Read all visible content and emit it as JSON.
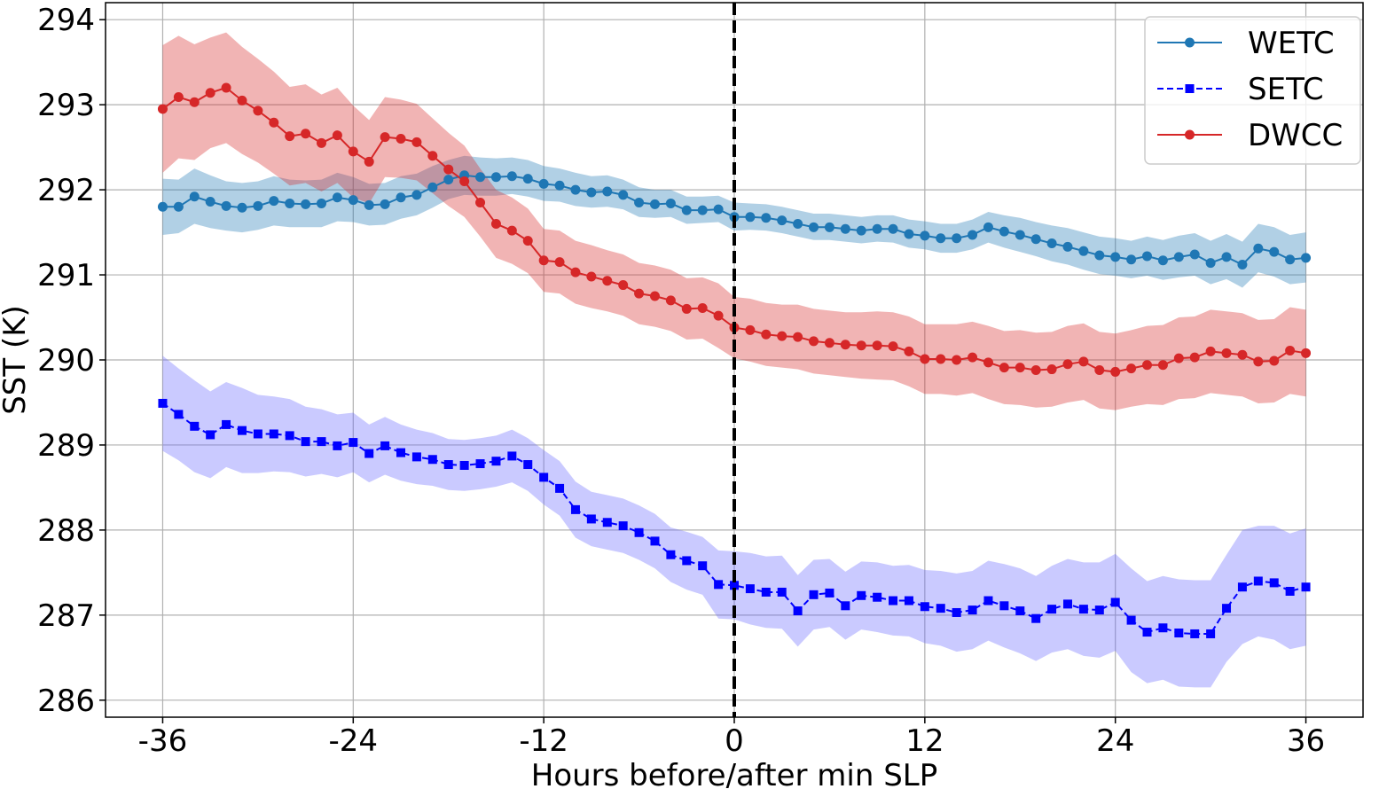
{
  "chart_data": {
    "type": "line",
    "xlabel": "Hours before/after min SLP",
    "ylabel": "SST (K)",
    "xlim": [
      -39.6,
      39.6
    ],
    "ylim": [
      285.8,
      294.2
    ],
    "xticks": [
      -36,
      -24,
      -12,
      0,
      12,
      24,
      36
    ],
    "yticks": [
      286,
      287,
      288,
      289,
      290,
      291,
      292,
      293,
      294
    ],
    "grid": true,
    "legend_position": "top-right",
    "vline_x": 0,
    "vline_style": "black dashed",
    "x": [
      -36,
      -35,
      -34,
      -33,
      -32,
      -31,
      -30,
      -29,
      -28,
      -27,
      -26,
      -25,
      -24,
      -23,
      -22,
      -21,
      -20,
      -19,
      -18,
      -17,
      -16,
      -15,
      -14,
      -13,
      -12,
      -11,
      -10,
      -9,
      -8,
      -7,
      -6,
      -5,
      -4,
      -3,
      -2,
      -1,
      0,
      1,
      2,
      3,
      4,
      5,
      6,
      7,
      8,
      9,
      10,
      11,
      12,
      13,
      14,
      15,
      16,
      17,
      18,
      19,
      20,
      21,
      22,
      23,
      24,
      25,
      26,
      27,
      28,
      29,
      30,
      31,
      32,
      33,
      34,
      35,
      36
    ],
    "series": [
      {
        "name": "WETC",
        "color": "#1f77b4",
        "band_color": "#1f77b4",
        "marker": "circle",
        "linestyle": "solid",
        "values": [
          291.8,
          291.8,
          291.92,
          291.86,
          291.81,
          291.79,
          291.81,
          291.87,
          291.84,
          291.83,
          291.84,
          291.91,
          291.88,
          291.82,
          291.83,
          291.91,
          291.94,
          292.03,
          292.12,
          292.17,
          292.15,
          292.15,
          292.16,
          292.13,
          292.07,
          292.05,
          292.0,
          291.97,
          291.98,
          291.94,
          291.85,
          291.83,
          291.84,
          291.76,
          291.76,
          291.77,
          291.68,
          291.68,
          291.67,
          291.64,
          291.6,
          291.56,
          291.56,
          291.54,
          291.52,
          291.54,
          291.54,
          291.48,
          291.46,
          291.43,
          291.43,
          291.47,
          291.56,
          291.51,
          291.47,
          291.42,
          291.37,
          291.33,
          291.28,
          291.23,
          291.21,
          291.18,
          291.22,
          291.17,
          291.21,
          291.24,
          291.14,
          291.21,
          291.12,
          291.31,
          291.27,
          291.18,
          291.2
        ],
        "lower": [
          291.47,
          291.49,
          291.6,
          291.55,
          291.52,
          291.5,
          291.53,
          291.58,
          291.56,
          291.56,
          291.56,
          291.63,
          291.62,
          291.58,
          291.59,
          291.66,
          291.7,
          291.79,
          291.89,
          291.94,
          291.93,
          291.93,
          291.95,
          291.92,
          291.87,
          291.86,
          291.81,
          291.79,
          291.8,
          291.77,
          291.68,
          291.67,
          291.68,
          291.6,
          291.61,
          291.62,
          291.52,
          291.53,
          291.52,
          291.49,
          291.45,
          291.41,
          291.41,
          291.39,
          291.37,
          291.39,
          291.38,
          291.32,
          291.3,
          291.26,
          291.26,
          291.3,
          291.38,
          291.32,
          291.27,
          291.22,
          291.16,
          291.12,
          291.06,
          291.01,
          290.99,
          290.96,
          290.99,
          290.94,
          290.97,
          290.99,
          290.89,
          290.95,
          290.85,
          291.03,
          290.98,
          290.89,
          290.91
        ],
        "upper": [
          292.13,
          292.12,
          292.25,
          292.17,
          292.1,
          292.08,
          292.1,
          292.16,
          292.12,
          292.11,
          292.12,
          292.2,
          292.15,
          292.07,
          292.08,
          292.16,
          292.19,
          292.28,
          292.35,
          292.4,
          292.38,
          292.37,
          292.38,
          292.35,
          292.28,
          292.25,
          292.2,
          292.16,
          292.17,
          292.12,
          292.03,
          292.0,
          292.0,
          291.92,
          291.92,
          291.93,
          291.85,
          291.84,
          291.83,
          291.8,
          291.76,
          291.72,
          291.72,
          291.7,
          291.68,
          291.7,
          291.7,
          291.65,
          291.63,
          291.6,
          291.6,
          291.65,
          291.74,
          291.7,
          291.67,
          291.62,
          291.58,
          291.55,
          291.5,
          291.45,
          291.43,
          291.4,
          291.45,
          291.41,
          291.46,
          291.49,
          291.4,
          291.48,
          291.39,
          291.6,
          291.56,
          291.47,
          291.5
        ]
      },
      {
        "name": "SETC",
        "color": "#0000ff",
        "band_color": "#6666ff",
        "marker": "square",
        "linestyle": "dashed",
        "values": [
          289.49,
          289.36,
          289.22,
          289.12,
          289.24,
          289.17,
          289.13,
          289.13,
          289.11,
          289.04,
          289.04,
          288.99,
          289.03,
          288.9,
          288.99,
          288.91,
          288.86,
          288.83,
          288.77,
          288.76,
          288.78,
          288.81,
          288.87,
          288.77,
          288.62,
          288.49,
          288.24,
          288.13,
          288.09,
          288.05,
          287.97,
          287.87,
          287.71,
          287.64,
          287.58,
          287.36,
          287.35,
          287.31,
          287.27,
          287.27,
          287.05,
          287.24,
          287.26,
          287.11,
          287.23,
          287.21,
          287.17,
          287.17,
          287.1,
          287.08,
          287.03,
          287.06,
          287.17,
          287.11,
          287.05,
          286.96,
          287.07,
          287.13,
          287.07,
          287.06,
          287.15,
          286.94,
          286.8,
          286.85,
          286.79,
          286.78,
          286.78,
          287.08,
          287.33,
          287.4,
          287.38,
          287.28,
          287.33
        ],
        "lower": [
          288.93,
          288.82,
          288.68,
          288.61,
          288.74,
          288.67,
          288.67,
          288.69,
          288.68,
          288.63,
          288.66,
          288.62,
          288.68,
          288.56,
          288.65,
          288.58,
          288.54,
          288.52,
          288.47,
          288.46,
          288.48,
          288.51,
          288.56,
          288.46,
          288.3,
          288.17,
          287.91,
          287.81,
          287.77,
          287.73,
          287.65,
          287.55,
          287.39,
          287.3,
          287.24,
          286.96,
          286.95,
          286.89,
          286.85,
          286.84,
          286.63,
          286.83,
          286.86,
          286.71,
          286.83,
          286.8,
          286.76,
          286.75,
          286.67,
          286.64,
          286.57,
          286.6,
          286.7,
          286.62,
          286.55,
          286.46,
          286.56,
          286.6,
          286.52,
          286.5,
          286.58,
          286.33,
          286.2,
          286.24,
          286.16,
          286.15,
          286.15,
          286.45,
          286.66,
          286.75,
          286.71,
          286.6,
          286.64
        ],
        "upper": [
          290.05,
          289.9,
          289.76,
          289.63,
          289.74,
          289.67,
          289.59,
          289.57,
          289.54,
          289.45,
          289.42,
          289.36,
          289.38,
          289.24,
          289.33,
          289.24,
          289.18,
          289.14,
          289.07,
          289.06,
          289.08,
          289.11,
          289.18,
          289.08,
          288.94,
          288.81,
          288.57,
          288.45,
          288.41,
          288.37,
          288.29,
          288.19,
          288.03,
          287.98,
          287.92,
          287.76,
          287.75,
          287.73,
          287.69,
          287.7,
          287.47,
          287.65,
          287.66,
          287.51,
          287.63,
          287.62,
          287.58,
          287.59,
          287.53,
          287.52,
          287.49,
          287.52,
          287.64,
          287.6,
          287.55,
          287.46,
          287.58,
          287.66,
          287.62,
          287.62,
          287.72,
          287.55,
          287.4,
          287.46,
          287.42,
          287.41,
          287.41,
          287.71,
          288.0,
          288.05,
          288.05,
          287.96,
          288.02
        ]
      },
      {
        "name": "DWCC",
        "color": "#d62728",
        "band_color": "#d62728",
        "marker": "circle",
        "linestyle": "solid",
        "values": [
          292.95,
          293.09,
          293.03,
          293.14,
          293.2,
          293.05,
          292.93,
          292.79,
          292.63,
          292.66,
          292.55,
          292.64,
          292.45,
          292.33,
          292.62,
          292.6,
          292.56,
          292.4,
          292.24,
          292.1,
          291.85,
          291.6,
          291.52,
          291.4,
          291.17,
          291.15,
          291.03,
          290.98,
          290.93,
          290.88,
          290.78,
          290.75,
          290.7,
          290.6,
          290.61,
          290.52,
          290.38,
          290.35,
          290.3,
          290.28,
          290.27,
          290.22,
          290.2,
          290.18,
          290.17,
          290.17,
          290.16,
          290.1,
          290.01,
          290.01,
          290.0,
          290.03,
          289.97,
          289.91,
          289.91,
          289.88,
          289.89,
          289.95,
          289.98,
          289.88,
          289.86,
          289.9,
          289.94,
          289.94,
          290.02,
          290.03,
          290.1,
          290.08,
          290.06,
          289.98,
          289.99,
          290.11,
          290.08
        ],
        "lower": [
          292.2,
          292.37,
          292.35,
          292.49,
          292.55,
          292.42,
          292.32,
          292.19,
          292.05,
          292.08,
          291.98,
          292.08,
          291.91,
          291.84,
          292.15,
          292.14,
          292.11,
          291.96,
          291.81,
          291.68,
          291.45,
          291.2,
          291.13,
          291.02,
          290.8,
          290.78,
          290.66,
          290.61,
          290.57,
          290.52,
          290.42,
          290.39,
          290.34,
          290.24,
          290.25,
          290.14,
          290.02,
          289.98,
          289.93,
          289.91,
          289.89,
          289.84,
          289.82,
          289.8,
          289.78,
          289.77,
          289.76,
          289.69,
          289.6,
          289.6,
          289.58,
          289.61,
          289.54,
          289.48,
          289.47,
          289.44,
          289.45,
          289.5,
          289.53,
          289.43,
          289.41,
          289.45,
          289.48,
          289.47,
          289.54,
          289.55,
          289.61,
          289.59,
          289.57,
          289.49,
          289.5,
          289.6,
          289.57
        ],
        "upper": [
          293.7,
          293.81,
          293.71,
          293.79,
          293.85,
          293.68,
          293.54,
          293.39,
          293.21,
          293.24,
          293.12,
          293.2,
          292.99,
          292.82,
          293.09,
          293.06,
          293.01,
          292.84,
          292.67,
          292.52,
          292.25,
          292.0,
          291.91,
          291.78,
          291.54,
          291.52,
          291.4,
          291.35,
          291.29,
          291.24,
          291.14,
          291.11,
          291.06,
          290.96,
          290.97,
          290.9,
          290.74,
          290.72,
          290.67,
          290.65,
          290.65,
          290.6,
          290.58,
          290.56,
          290.56,
          290.57,
          290.56,
          290.51,
          290.42,
          290.42,
          290.42,
          290.45,
          290.4,
          290.34,
          290.35,
          290.32,
          290.33,
          290.4,
          290.43,
          290.33,
          290.31,
          290.35,
          290.4,
          290.41,
          290.5,
          290.51,
          290.59,
          290.57,
          290.55,
          290.47,
          290.48,
          290.62,
          290.59
        ]
      }
    ]
  }
}
